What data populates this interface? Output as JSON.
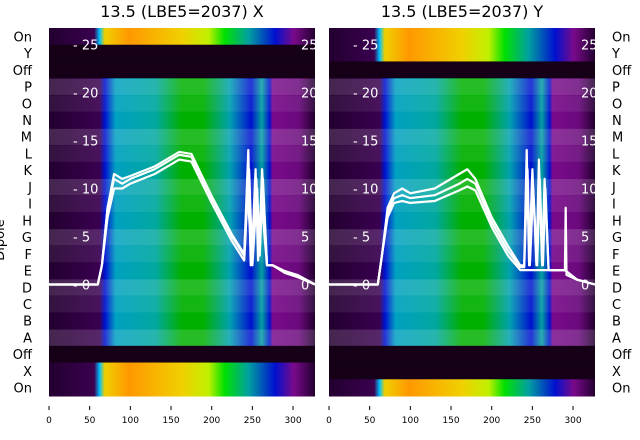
{
  "chart_data": {
    "type": "heatmap",
    "ylabel": "Dipole",
    "row_labels": [
      "On",
      "Y",
      "Off",
      "P",
      "O",
      "N",
      "M",
      "L",
      "K",
      "J",
      "I",
      "H",
      "G",
      "F",
      "E",
      "D",
      "C",
      "B",
      "A",
      "Off",
      "X",
      "On"
    ],
    "x_ticks": [
      0,
      50,
      100,
      150,
      200,
      250,
      300
    ],
    "xlim": [
      0,
      327
    ],
    "overlay_y_ticks": [
      0,
      5,
      10,
      15,
      20,
      25
    ],
    "overlay_ylim": [
      -11.6,
      26.7
    ],
    "colors": {
      "dark": "#22002f",
      "off": "#150018",
      "purple": "#7a0a8c",
      "blue": "#0010d0",
      "teal": "#00a0b0",
      "green": "#00b000",
      "yellow": "#f0d000",
      "orange": "#ff9800",
      "line": "#ffffff"
    },
    "panels": [
      {
        "title": "13.5 (LBE5=2037) X",
        "row_kinds": [
          "spec",
          "off",
          "off",
          "dip",
          "dip",
          "dip",
          "dip",
          "dip",
          "dip",
          "dip",
          "dip",
          "dip",
          "dip",
          "dip",
          "dip",
          "dip",
          "dip",
          "dip",
          "dip",
          "off",
          "spec",
          "spec"
        ],
        "series": [
          {
            "name": "overlay-1",
            "x": [
              0,
              60,
              65,
              72,
              80,
              90,
              100,
              130,
              160,
              175,
              200,
              225,
              240,
              245,
              248,
              255,
              258,
              262,
              268,
              275,
              290,
              305,
              327
            ],
            "y": [
              0,
              0,
              2,
              8,
              11,
              10.5,
              11,
              12,
              13.5,
              13.3,
              9,
              5,
              3,
              14,
              2,
              11,
              3,
              12,
              2,
              2,
              1.3,
              1,
              0
            ]
          },
          {
            "name": "overlay-2",
            "x": [
              0,
              60,
              65,
              72,
              80,
              90,
              100,
              130,
              160,
              175,
              200,
              225,
              240,
              246,
              250,
              256,
              259,
              263,
              268,
              275,
              290,
              305,
              327
            ],
            "y": [
              0,
              0,
              2,
              7,
              10,
              10,
              10.5,
              11.5,
              13,
              12.8,
              8.5,
              4.5,
              2.5,
              12,
              2,
              10,
              3,
              11,
              2,
              2,
              1.2,
              0.8,
              0
            ]
          },
          {
            "name": "overlay-3",
            "x": [
              0,
              60,
              65,
              72,
              80,
              90,
              100,
              130,
              160,
              175,
              200,
              225,
              240,
              244,
              249,
              254,
              257,
              261,
              268,
              275,
              290,
              305,
              327
            ],
            "y": [
              0,
              0,
              2,
              8,
              11.5,
              11,
              11.3,
              12.3,
              13.8,
              13.6,
              9.2,
              5.2,
              3.2,
              10,
              2.5,
              12,
              2.5,
              9,
              2,
              2,
              1.4,
              1,
              0
            ]
          }
        ]
      },
      {
        "title": "13.5 (LBE5=2037) Y",
        "row_kinds": [
          "spec",
          "spec",
          "off",
          "dip",
          "dip",
          "dip",
          "dip",
          "dip",
          "dip",
          "dip",
          "dip",
          "dip",
          "dip",
          "dip",
          "dip",
          "dip",
          "dip",
          "dip",
          "dip",
          "off",
          "off",
          "spec"
        ],
        "series": [
          {
            "name": "overlay-1",
            "x": [
              0,
              60,
              65,
              72,
              80,
              90,
              100,
              130,
              160,
              170,
              180,
              200,
              220,
              235,
              240,
              243,
              246,
              250,
              255,
              258,
              262,
              265,
              270,
              290,
              291,
              292,
              305,
              327
            ],
            "y": [
              0,
              0,
              3,
              8,
              9.5,
              10,
              9.5,
              10,
              11.5,
              12,
              11,
              7,
              4,
              2,
              2,
              14,
              2,
              12,
              2,
              13,
              2,
              11,
              1.5,
              1.5,
              8,
              1,
              0.5,
              0
            ]
          },
          {
            "name": "overlay-2",
            "x": [
              0,
              60,
              65,
              72,
              80,
              90,
              100,
              130,
              160,
              170,
              180,
              200,
              220,
              235,
              240,
              244,
              247,
              251,
              256,
              259,
              263,
              266,
              270,
              290,
              305,
              327
            ],
            "y": [
              0,
              0,
              3,
              7.5,
              9,
              9.3,
              9,
              9.3,
              10.5,
              11,
              10.5,
              6.5,
              3.5,
              1.8,
              1.8,
              12,
              2,
              10,
              2,
              11,
              2,
              10,
              1.5,
              1.5,
              0.5,
              0
            ]
          },
          {
            "name": "overlay-3",
            "x": [
              0,
              60,
              65,
              72,
              80,
              90,
              100,
              130,
              160,
              170,
              180,
              200,
              220,
              235,
              240,
              270,
              290,
              305,
              327
            ],
            "y": [
              0,
              0,
              3,
              7,
              8.5,
              8.7,
              8.5,
              8.7,
              9.8,
              10.2,
              9.8,
              6,
              3,
              1.5,
              1.5,
              1.5,
              1.5,
              0.5,
              0
            ]
          }
        ]
      }
    ]
  }
}
